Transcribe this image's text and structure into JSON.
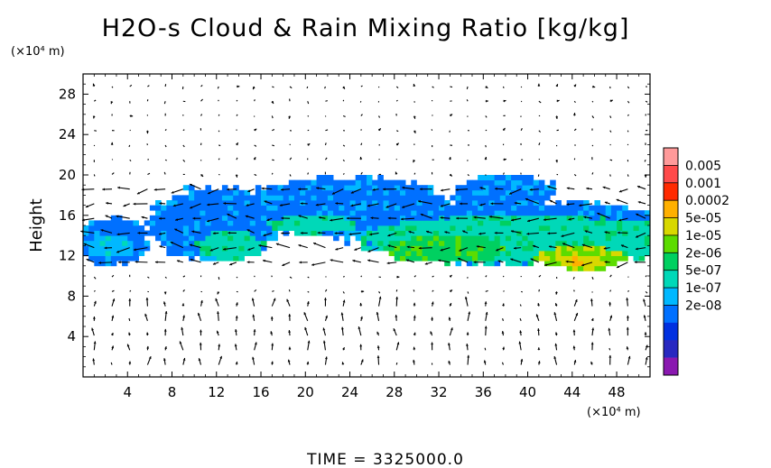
{
  "chart_data": {
    "type": "heatmap",
    "title": "H2O-s Cloud & Rain Mixing Ratio [kg/kg]",
    "ylabel": "Height",
    "y_unit": "(×10⁴ m)",
    "x_unit": "(×10⁴ m)",
    "xlim": [
      0,
      51
    ],
    "ylim": [
      0,
      30
    ],
    "x_ticks": [
      "4",
      "8",
      "12",
      "16",
      "20",
      "24",
      "28",
      "32",
      "36",
      "40",
      "44",
      "48"
    ],
    "y_ticks": [
      "4",
      "8",
      "12",
      "16",
      "20",
      "24",
      "28"
    ],
    "colorbar": {
      "labels": [
        "0.005",
        "0.001",
        "0.0002",
        "5e-05",
        "1e-05",
        "2e-06",
        "5e-07",
        "1e-07",
        "2e-08"
      ],
      "colors": [
        "#ff9a9a",
        "#ff4a4a",
        "#ff2a00",
        "#ffb000",
        "#d8d800",
        "#5cdc00",
        "#00d060",
        "#00d8b8",
        "#00b8ff",
        "#0070ff",
        "#0030e0",
        "#2828c0",
        "#8a18b0"
      ]
    },
    "cloud_regions": [
      {
        "level": 3,
        "x": [
          0.0,
          5.2
        ],
        "y": [
          11.2,
          15.8
        ]
      },
      {
        "level": 4,
        "x": [
          1.0,
          4.2
        ],
        "y": [
          11.8,
          14.2
        ]
      },
      {
        "level": 3,
        "x": [
          7.2,
          16.5
        ],
        "y": [
          11.5,
          18.8
        ]
      },
      {
        "level": 5,
        "x": [
          10.8,
          15.5
        ],
        "y": [
          11.6,
          14.4
        ]
      },
      {
        "level": 3,
        "x": [
          16.0,
          31.5
        ],
        "y": [
          13.8,
          19.8
        ]
      },
      {
        "level": 5,
        "x": [
          17.5,
          23.5
        ],
        "y": [
          14.2,
          16.0
        ]
      },
      {
        "level": 3,
        "x": [
          34.5,
          41.5
        ],
        "y": [
          17.0,
          20.0
        ]
      },
      {
        "level": 3,
        "x": [
          27.0,
          51.0
        ],
        "y": [
          11.0,
          17.5
        ]
      },
      {
        "level": 5,
        "x": [
          28.0,
          51.0
        ],
        "y": [
          11.2,
          16.0
        ]
      },
      {
        "level": 6,
        "x": [
          28.5,
          37.0
        ],
        "y": [
          11.3,
          14.0
        ]
      },
      {
        "level": 7,
        "x": [
          41.5,
          48.0
        ],
        "y": [
          10.6,
          13.0
        ]
      },
      {
        "level": 8,
        "x": [
          43.5,
          46.5
        ],
        "y": [
          10.8,
          12.2
        ]
      }
    ]
  },
  "footer": {
    "time": "TIME = 3325000.0"
  }
}
